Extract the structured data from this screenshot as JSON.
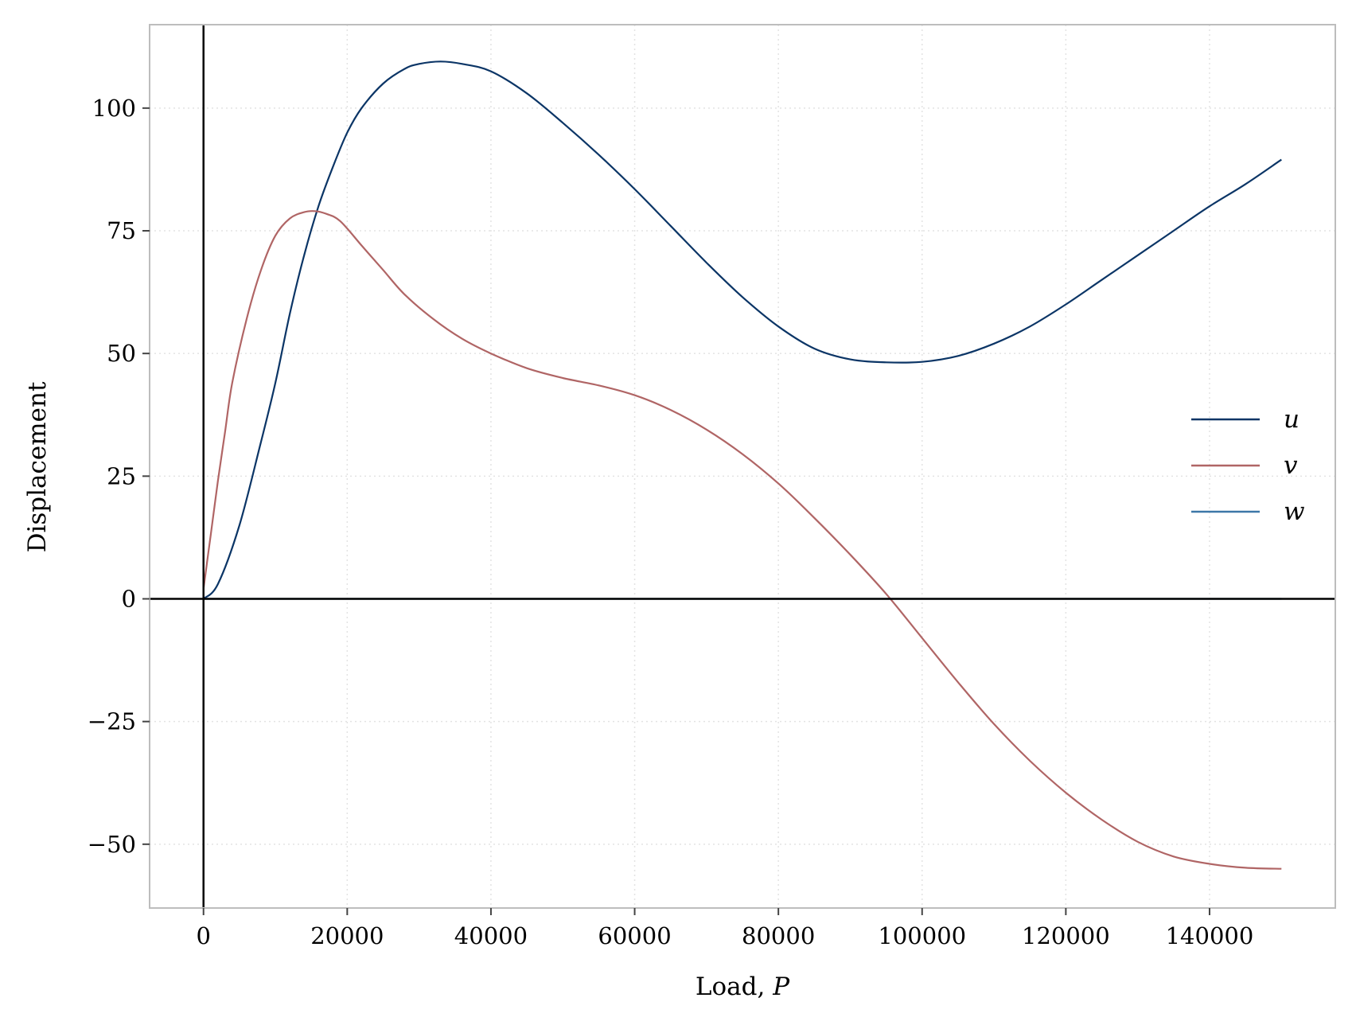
{
  "chart_data": {
    "type": "line",
    "xlabel_prefix": "Load, ",
    "xlabel_var": "P",
    "ylabel": "Displacement",
    "xlim": [
      -7500,
      157500
    ],
    "ylim": [
      -63,
      117
    ],
    "xticks": [
      0,
      20000,
      40000,
      60000,
      80000,
      100000,
      120000,
      140000
    ],
    "xtick_labels": [
      "0",
      "20000",
      "40000",
      "60000",
      "80000",
      "100000",
      "120000",
      "140000"
    ],
    "yticks": [
      -50,
      -25,
      0,
      25,
      50,
      75,
      100
    ],
    "ytick_labels": [
      "−50",
      "−25",
      "0",
      "25",
      "50",
      "75",
      "100"
    ],
    "grid": true,
    "legend_position": "right",
    "series": [
      {
        "name": "u",
        "color": "#0b3566",
        "x": [
          0,
          2000,
          5000,
          8000,
          10000,
          12000,
          14000,
          16000,
          18000,
          20000,
          22000,
          25000,
          28000,
          30000,
          33000,
          36000,
          40000,
          45000,
          50000,
          55000,
          60000,
          65000,
          70000,
          75000,
          80000,
          85000,
          90000,
          95000,
          100000,
          105000,
          110000,
          115000,
          120000,
          125000,
          130000,
          135000,
          140000,
          145000,
          150000
        ],
        "y": [
          0,
          3,
          15,
          32,
          44,
          58,
          70,
          80,
          88,
          95,
          100,
          105,
          108,
          109,
          109.5,
          109,
          107.5,
          103,
          97,
          90.5,
          83.5,
          76,
          68.5,
          61.5,
          55.5,
          51,
          48.8,
          48.2,
          48.3,
          49.5,
          52,
          55.5,
          60,
          65,
          70,
          75,
          80,
          84.5,
          89.5
        ]
      },
      {
        "name": "v",
        "color": "#b06565",
        "x": [
          0,
          1000,
          2000,
          3000,
          4000,
          6000,
          8000,
          10000,
          12000,
          14000,
          15500,
          17000,
          19000,
          22000,
          25000,
          28000,
          32000,
          36000,
          40000,
          45000,
          50000,
          55000,
          60000,
          65000,
          70000,
          75000,
          80000,
          85000,
          90000,
          95000,
          100000,
          105000,
          110000,
          115000,
          120000,
          125000,
          130000,
          135000,
          140000,
          145000,
          150000
        ],
        "y": [
          2,
          13,
          24,
          34,
          44,
          57,
          67,
          74,
          77.5,
          78.8,
          79,
          78.5,
          77,
          72,
          67,
          62,
          57,
          53,
          50,
          47,
          45,
          43.5,
          41.5,
          38.5,
          34.5,
          29.5,
          23.5,
          16.5,
          9,
          1,
          -8,
          -17,
          -25.5,
          -33,
          -39.5,
          -45,
          -49.5,
          -52.5,
          -54,
          -54.8,
          -55
        ]
      },
      {
        "name": "w",
        "color": "#3d77a8",
        "x": [
          0,
          150000
        ],
        "y": [
          0,
          0
        ]
      }
    ]
  }
}
